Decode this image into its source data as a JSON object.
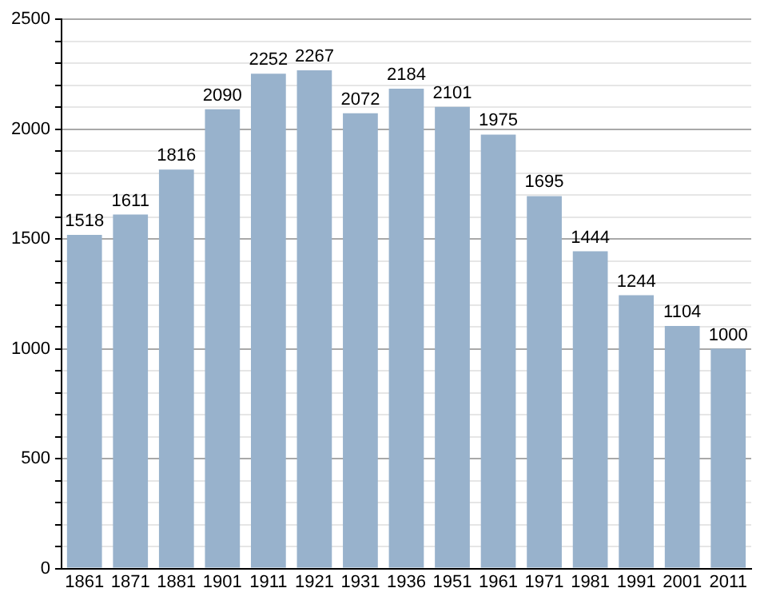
{
  "chart_data": {
    "type": "bar",
    "categories": [
      "1861",
      "1871",
      "1881",
      "1901",
      "1911",
      "1921",
      "1931",
      "1936",
      "1951",
      "1961",
      "1971",
      "1981",
      "1991",
      "2001",
      "2011"
    ],
    "values": [
      1518,
      1611,
      1816,
      2090,
      2252,
      2267,
      2072,
      2184,
      2101,
      1975,
      1695,
      1444,
      1244,
      1104,
      1000
    ],
    "color": "#98b2cc",
    "ylim": [
      0,
      2500
    ],
    "yticks": [
      0,
      {
        "value": 100,
        "label": null
      },
      {
        "value": 200,
        "label": null
      },
      {
        "value": 300,
        "label": null
      },
      {
        "value": 400,
        "label": null
      },
      500,
      {
        "value": 600,
        "label": null
      },
      {
        "value": 700,
        "label": null
      },
      {
        "value": 800,
        "label": null
      },
      {
        "value": 900,
        "label": null
      },
      1000,
      {
        "value": 1100,
        "label": null
      },
      {
        "value": 1200,
        "label": null
      },
      {
        "value": 1300,
        "label": null
      },
      {
        "value": 1400,
        "label": null
      },
      1500,
      {
        "value": 1600,
        "label": null
      },
      {
        "value": 1700,
        "label": null
      },
      {
        "value": 1800,
        "label": null
      },
      {
        "value": 1900,
        "label": null
      },
      2000,
      {
        "value": 2100,
        "label": null
      },
      {
        "value": 2200,
        "label": null
      },
      {
        "value": 2300,
        "label": null
      },
      {
        "value": 2400,
        "label": null
      },
      2500
    ],
    "grid": true,
    "data_labels": true
  }
}
